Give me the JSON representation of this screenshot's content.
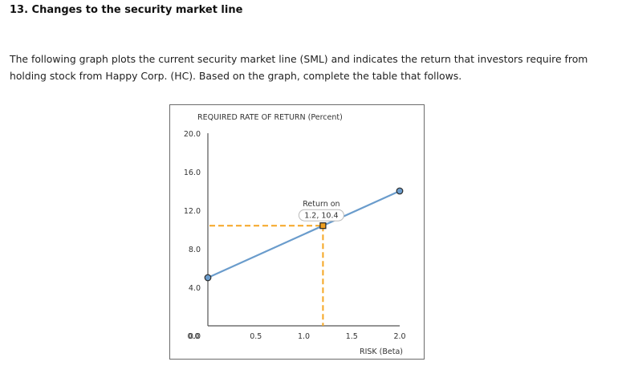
{
  "question": {
    "heading": "13.  Changes to the security market line",
    "intro": "The following graph plots the current security market line (SML) and indicates the return that investors require from holding stock from Happy Corp. (HC). Based on the graph, complete the table that follows."
  },
  "chart_data": {
    "type": "line",
    "title": "",
    "ylabel": "REQUIRED RATE OF RETURN (Percent)",
    "xlabel": "RISK (Beta)",
    "xlim": [
      0.0,
      2.0
    ],
    "ylim": [
      0.0,
      20.0
    ],
    "x_ticks": [
      "0.0",
      "0.5",
      "1.0",
      "1.5",
      "2.0"
    ],
    "y_ticks": [
      "20.0",
      "16.0",
      "12.0",
      "8.0",
      "4.0",
      "0.0"
    ],
    "grid": false,
    "series": [
      {
        "name": "SML",
        "color": "#6a9ccc",
        "points": [
          {
            "x": 0.0,
            "y": 5.0
          },
          {
            "x": 2.0,
            "y": 14.0
          }
        ]
      }
    ],
    "annotations": [
      {
        "name": "Return on HC",
        "label": "Return on HC",
        "x": 1.2,
        "y": 10.4,
        "tooltip": "1.2,  10.4",
        "marker": "square",
        "color": "#f0a020"
      }
    ]
  },
  "colors": {
    "sml_line": "#6a9ccc",
    "guide_dash": "#f5a623",
    "axis": "#555555",
    "frame": "#6b6b6b"
  }
}
